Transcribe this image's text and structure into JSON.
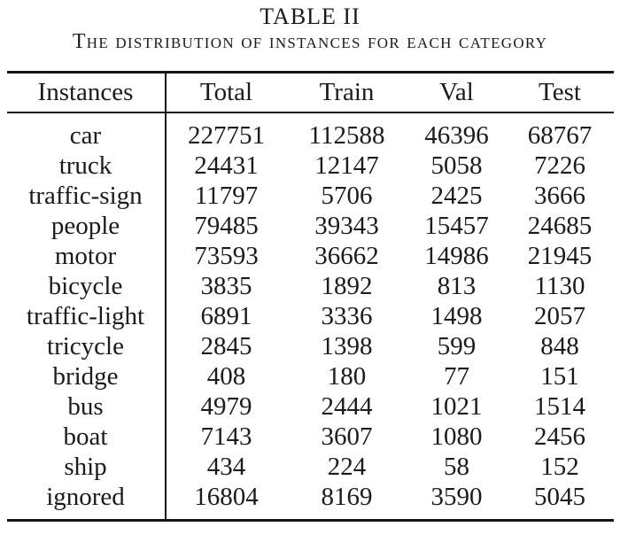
{
  "caption": {
    "title": "TABLE II",
    "subtitle": "The distribution of instances for each category"
  },
  "table": {
    "columns": [
      "Instances",
      "Total",
      "Train",
      "Val",
      "Test"
    ],
    "rows": [
      [
        "car",
        "227751",
        "112588",
        "46396",
        "68767"
      ],
      [
        "truck",
        "24431",
        "12147",
        "5058",
        "7226"
      ],
      [
        "traffic-sign",
        "11797",
        "5706",
        "2425",
        "3666"
      ],
      [
        "people",
        "79485",
        "39343",
        "15457",
        "24685"
      ],
      [
        "motor",
        "73593",
        "36662",
        "14986",
        "21945"
      ],
      [
        "bicycle",
        "3835",
        "1892",
        "813",
        "1130"
      ],
      [
        "traffic-light",
        "6891",
        "3336",
        "1498",
        "2057"
      ],
      [
        "tricycle",
        "2845",
        "1398",
        "599",
        "848"
      ],
      [
        "bridge",
        "408",
        "180",
        "77",
        "151"
      ],
      [
        "bus",
        "4979",
        "2444",
        "1021",
        "1514"
      ],
      [
        "boat",
        "7143",
        "3607",
        "1080",
        "2456"
      ],
      [
        "ship",
        "434",
        "224",
        "58",
        "152"
      ],
      [
        "ignored",
        "16804",
        "8169",
        "3590",
        "5045"
      ]
    ]
  },
  "colors": {
    "text": "#1b1b1b",
    "rule": "#151515",
    "background": "#ffffff"
  }
}
